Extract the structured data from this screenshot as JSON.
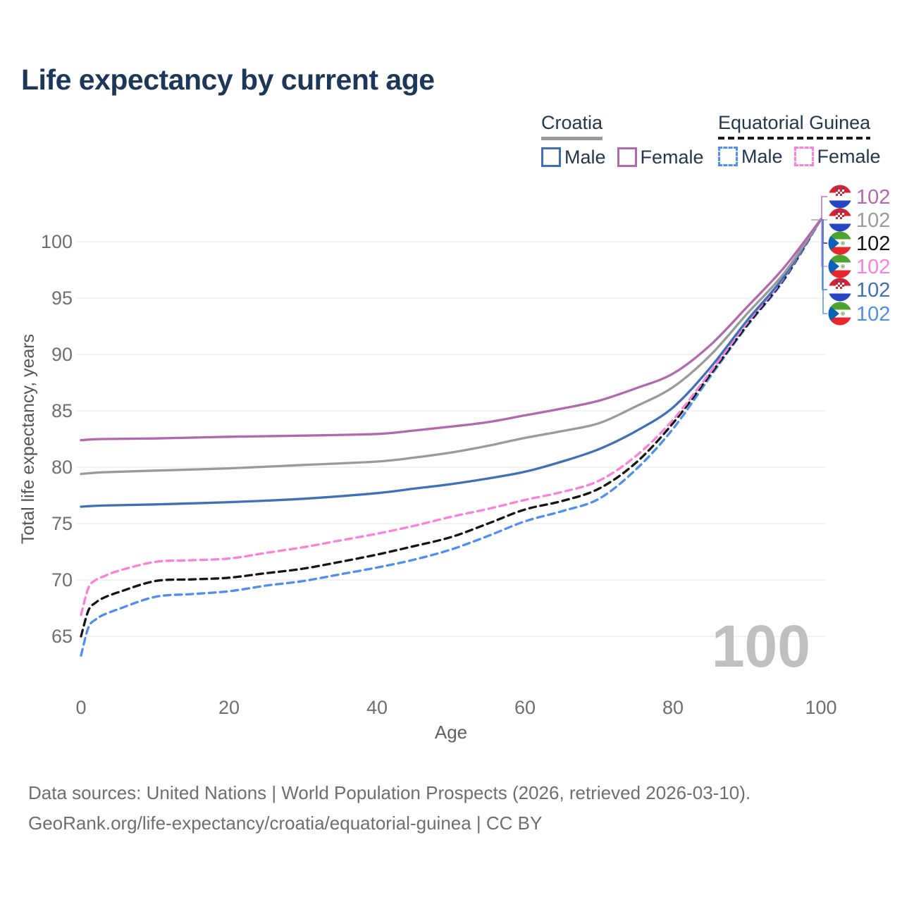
{
  "title": "Life expectancy by current age",
  "legend": {
    "groups": [
      {
        "label": "Croatia",
        "line_style": "solid",
        "underline_color": "#9b9b9b",
        "items": [
          {
            "label": "Male",
            "color": "#3e6fb7",
            "dashed": false
          },
          {
            "label": "Female",
            "color": "#b168af",
            "dashed": false
          }
        ]
      },
      {
        "label": "Equatorial Guinea",
        "line_style": "dashed",
        "underline_color": "#1c1c1c",
        "items": [
          {
            "label": "Male",
            "color": "#4f8df0",
            "dashed": true
          },
          {
            "label": "Female",
            "color": "#fb80d9",
            "dashed": true
          }
        ]
      }
    ]
  },
  "chart_data": {
    "type": "line",
    "title": "Life expectancy by current age",
    "xlabel": "Age",
    "ylabel": "Total life expectancy, years",
    "xlim": [
      0,
      100
    ],
    "ylim": [
      62,
      103
    ],
    "x_ticks": [
      0,
      20,
      40,
      60,
      80,
      100
    ],
    "y_ticks": [
      65,
      70,
      75,
      80,
      85,
      90,
      95,
      100
    ],
    "grid": "horizontal",
    "legend_position": "top-right",
    "watermark": "100",
    "series": [
      {
        "id": "croatia-female",
        "name": "Croatia Female",
        "country": "Croatia",
        "flag": "croatia",
        "color": "#b168af",
        "dashed": false,
        "z": 6,
        "end_label": "102",
        "points": [
          [
            0,
            82.4
          ],
          [
            3,
            82.5
          ],
          [
            10,
            82.55
          ],
          [
            20,
            82.7
          ],
          [
            30,
            82.8
          ],
          [
            40,
            82.95
          ],
          [
            45,
            83.25
          ],
          [
            50,
            83.6
          ],
          [
            55,
            84.0
          ],
          [
            60,
            84.6
          ],
          [
            65,
            85.2
          ],
          [
            70,
            85.9
          ],
          [
            75,
            87.0
          ],
          [
            80,
            88.3
          ],
          [
            85,
            90.8
          ],
          [
            90,
            94.2
          ],
          [
            95,
            97.7
          ],
          [
            100,
            102
          ]
        ]
      },
      {
        "id": "croatia-both",
        "name": "Croatia Both sexes",
        "country": "Croatia",
        "flag": "croatia",
        "color": "#9a9a9a",
        "dashed": false,
        "z": 5,
        "end_label": "102",
        "points": [
          [
            0,
            79.4
          ],
          [
            3,
            79.55
          ],
          [
            10,
            79.7
          ],
          [
            20,
            79.9
          ],
          [
            30,
            80.2
          ],
          [
            40,
            80.5
          ],
          [
            45,
            80.85
          ],
          [
            50,
            81.3
          ],
          [
            55,
            81.9
          ],
          [
            60,
            82.6
          ],
          [
            65,
            83.2
          ],
          [
            70,
            83.9
          ],
          [
            75,
            85.4
          ],
          [
            80,
            87.1
          ],
          [
            85,
            89.9
          ],
          [
            90,
            93.6
          ],
          [
            95,
            97.2
          ],
          [
            100,
            102
          ]
        ]
      },
      {
        "id": "equatorial-guinea-both",
        "name": "Equatorial Guinea Both sexes",
        "country": "Equatorial Guinea",
        "flag": "equatorial-guinea",
        "color": "#141414",
        "dashed": true,
        "z": 2,
        "end_label": "102",
        "points": [
          [
            0,
            65.0
          ],
          [
            1,
            67.3
          ],
          [
            2,
            68.0
          ],
          [
            3,
            68.4
          ],
          [
            5,
            68.9
          ],
          [
            10,
            69.9
          ],
          [
            15,
            70.05
          ],
          [
            20,
            70.2
          ],
          [
            25,
            70.6
          ],
          [
            30,
            71.0
          ],
          [
            35,
            71.6
          ],
          [
            40,
            72.25
          ],
          [
            45,
            73.0
          ],
          [
            50,
            73.8
          ],
          [
            55,
            75.0
          ],
          [
            60,
            76.25
          ],
          [
            65,
            77.0
          ],
          [
            70,
            78.1
          ],
          [
            75,
            80.4
          ],
          [
            80,
            83.9
          ],
          [
            85,
            88.2
          ],
          [
            90,
            92.6
          ],
          [
            95,
            96.7
          ],
          [
            100,
            102
          ]
        ]
      },
      {
        "id": "equatorial-guinea-female",
        "name": "Equatorial Guinea Female",
        "country": "Equatorial Guinea",
        "flag": "equatorial-guinea",
        "color": "#fb80d9",
        "dashed": true,
        "z": 3,
        "end_label": "102",
        "points": [
          [
            0,
            66.9
          ],
          [
            1,
            69.3
          ],
          [
            2,
            70.0
          ],
          [
            3,
            70.3
          ],
          [
            5,
            70.8
          ],
          [
            10,
            71.6
          ],
          [
            15,
            71.75
          ],
          [
            20,
            71.9
          ],
          [
            25,
            72.4
          ],
          [
            30,
            72.9
          ],
          [
            35,
            73.5
          ],
          [
            40,
            74.1
          ],
          [
            45,
            74.8
          ],
          [
            50,
            75.6
          ],
          [
            55,
            76.3
          ],
          [
            60,
            77.1
          ],
          [
            65,
            77.8
          ],
          [
            70,
            78.8
          ],
          [
            75,
            81.0
          ],
          [
            80,
            84.2
          ],
          [
            85,
            88.4
          ],
          [
            90,
            92.8
          ],
          [
            95,
            96.8
          ],
          [
            100,
            102
          ]
        ]
      },
      {
        "id": "croatia-male",
        "name": "Croatia Male",
        "country": "Croatia",
        "flag": "croatia",
        "color": "#3e6fb7",
        "dashed": false,
        "z": 4,
        "end_label": "102",
        "points": [
          [
            0,
            76.5
          ],
          [
            3,
            76.6
          ],
          [
            10,
            76.7
          ],
          [
            20,
            76.9
          ],
          [
            30,
            77.2
          ],
          [
            40,
            77.7
          ],
          [
            45,
            78.1
          ],
          [
            50,
            78.5
          ],
          [
            55,
            79.0
          ],
          [
            60,
            79.6
          ],
          [
            65,
            80.5
          ],
          [
            70,
            81.6
          ],
          [
            75,
            83.2
          ],
          [
            80,
            85.3
          ],
          [
            85,
            88.8
          ],
          [
            90,
            93.0
          ],
          [
            95,
            96.9
          ],
          [
            100,
            102
          ]
        ]
      },
      {
        "id": "equatorial-guinea-male",
        "name": "Equatorial Guinea Male",
        "country": "Equatorial Guinea",
        "flag": "equatorial-guinea",
        "color": "#4f8df0",
        "dashed": true,
        "z": 1,
        "end_label": "102",
        "points": [
          [
            0,
            63.3
          ],
          [
            1,
            65.8
          ],
          [
            2,
            66.5
          ],
          [
            3,
            66.9
          ],
          [
            5,
            67.4
          ],
          [
            10,
            68.5
          ],
          [
            15,
            68.75
          ],
          [
            20,
            69.0
          ],
          [
            25,
            69.5
          ],
          [
            30,
            69.9
          ],
          [
            35,
            70.5
          ],
          [
            40,
            71.1
          ],
          [
            45,
            71.8
          ],
          [
            50,
            72.7
          ],
          [
            55,
            73.9
          ],
          [
            60,
            75.2
          ],
          [
            65,
            76.1
          ],
          [
            70,
            77.2
          ],
          [
            75,
            79.8
          ],
          [
            80,
            83.4
          ],
          [
            85,
            88.0
          ],
          [
            90,
            92.5
          ],
          [
            95,
            96.6
          ],
          [
            100,
            102
          ]
        ]
      }
    ]
  },
  "footer": {
    "line1": "Data sources: United Nations | World Population Prospects (2026, retrieved 2026-03-10).",
    "line2": "GeoRank.org/life-expectancy/croatia/equatorial-guinea | CC BY"
  }
}
